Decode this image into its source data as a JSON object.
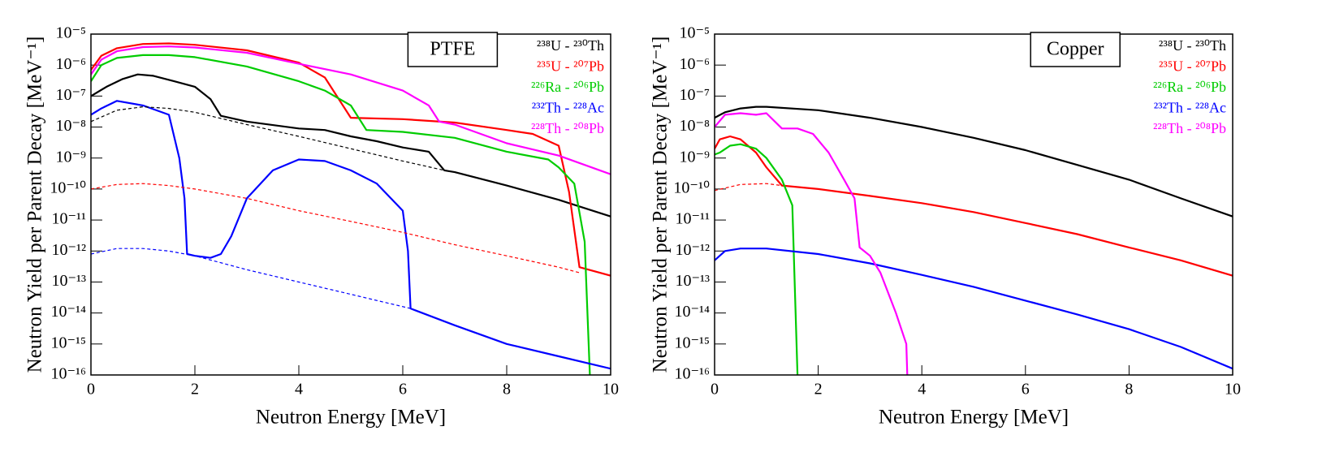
{
  "chart_data": [
    {
      "type": "line",
      "title": "PTFE",
      "xlabel": "Neutron Energy [MeV]",
      "ylabel": "Neutron Yield per Parent Decay [MeV⁻¹]",
      "log_y": true,
      "grid": false,
      "legend": "top-right",
      "xlim": [
        0,
        10
      ],
      "xticks": [
        0,
        2,
        4,
        6,
        8,
        10
      ],
      "ylim": [
        1e-16,
        1e-05
      ],
      "yticks": [
        {
          "value": 1e-16,
          "label": "10⁻¹⁶"
        },
        {
          "value": 1e-15,
          "label": "10⁻¹⁵"
        },
        {
          "value": 1e-14,
          "label": "10⁻¹⁴"
        },
        {
          "value": 1e-13,
          "label": "10⁻¹³"
        },
        {
          "value": 1e-12,
          "label": "10⁻¹²"
        },
        {
          "value": 1e-11,
          "label": "10⁻¹¹"
        },
        {
          "value": 1e-10,
          "label": "10⁻¹⁰"
        },
        {
          "value": 1e-09,
          "label": "10⁻⁹"
        },
        {
          "value": 1e-08,
          "label": "10⁻⁸"
        },
        {
          "value": 1e-07,
          "label": "10⁻⁷"
        },
        {
          "value": 1e-06,
          "label": "10⁻⁶"
        },
        {
          "value": 1e-05,
          "label": "10⁻⁵"
        }
      ],
      "series": [
        {
          "name": "²³⁸U - ²³⁰Th",
          "color": "#000000",
          "x": [
            0,
            0.3,
            0.6,
            0.9,
            1.2,
            1.6,
            2,
            2.3,
            2.5,
            3,
            4,
            4.5,
            5,
            5.5,
            6,
            6.5,
            6.8,
            7,
            8,
            9,
            10
          ],
          "values": [
            1e-07,
            2e-07,
            3.5e-07,
            5e-07,
            4.5e-07,
            3e-07,
            2e-07,
            8e-08,
            2.3e-08,
            1.5e-08,
            9e-09,
            8e-09,
            5e-09,
            3.5e-09,
            2.2e-09,
            1.6e-09,
            4e-10,
            3.5e-10,
            1.3e-10,
            4.5e-11,
            1.3e-11
          ]
        },
        {
          "name": "²³⁵U - ²⁰⁷Pb",
          "color": "#ff0000",
          "x": [
            0,
            0.2,
            0.5,
            1,
            1.5,
            2,
            3,
            4,
            4.5,
            5,
            6,
            7,
            8,
            8.5,
            9,
            9.2,
            9.4,
            10
          ],
          "values": [
            7e-07,
            2e-06,
            3.5e-06,
            4.8e-06,
            5e-06,
            4.5e-06,
            3e-06,
            1.2e-06,
            4e-07,
            2e-08,
            1.8e-08,
            1.4e-08,
            8e-09,
            6e-09,
            2.5e-09,
            8e-11,
            3e-13,
            1.6e-13
          ]
        },
        {
          "name": "²²⁶Ra - ²⁰⁶Pb",
          "color": "#00cc00",
          "x": [
            0,
            0.2,
            0.5,
            1,
            1.5,
            2,
            3,
            4,
            4.5,
            5,
            5.3,
            6,
            7,
            8,
            8.8,
            9,
            9.3,
            9.5,
            9.6
          ],
          "values": [
            3e-07,
            1e-06,
            1.7e-06,
            2.1e-06,
            2.1e-06,
            1.8e-06,
            9e-07,
            3e-07,
            1.5e-07,
            5e-08,
            8e-09,
            7e-09,
            4.5e-09,
            1.6e-09,
            9e-10,
            5e-10,
            1.5e-10,
            2e-12,
            1e-16
          ]
        },
        {
          "name": "²³²Th - ²²⁸Ac",
          "color": "#0000ff",
          "x": [
            0,
            0.2,
            0.5,
            1,
            1.5,
            1.7,
            1.8,
            1.85,
            2,
            2.3,
            2.5,
            2.7,
            3,
            3.5,
            4,
            4.5,
            5,
            5.5,
            6,
            6.1,
            6.15,
            7,
            8,
            9,
            10
          ],
          "values": [
            2.5e-08,
            4e-08,
            7e-08,
            5e-08,
            2.5e-08,
            1e-09,
            5e-11,
            8e-13,
            7e-13,
            6e-13,
            8e-13,
            3e-12,
            5e-11,
            4e-10,
            9e-10,
            8e-10,
            4e-10,
            1.5e-10,
            2e-11,
            1e-12,
            1.4e-14,
            4e-15,
            1e-15,
            4e-16,
            1.6e-16
          ]
        },
        {
          "name": "²²⁸Th - ²⁰⁸Pb",
          "color": "#ff00ff",
          "x": [
            0,
            0.2,
            0.5,
            1,
            1.5,
            2,
            3,
            4,
            5,
            6,
            6.5,
            6.7,
            7,
            8,
            9,
            10
          ],
          "values": [
            5e-07,
            1.5e-06,
            2.8e-06,
            3.8e-06,
            4e-06,
            3.7e-06,
            2.5e-06,
            1.1e-06,
            5e-07,
            1.5e-07,
            5e-08,
            1.5e-08,
            1.2e-08,
            3e-09,
            1.2e-09,
            3e-10
          ]
        },
        {
          "color": "#000000",
          "dashed": true,
          "x": [
            0,
            0.5,
            1,
            1.5,
            2,
            3,
            4,
            5,
            6,
            6.8
          ],
          "values": [
            1.5e-08,
            3.5e-08,
            4.5e-08,
            4e-08,
            3e-08,
            1.2e-08,
            5e-09,
            2e-09,
            8e-10,
            4e-10
          ]
        },
        {
          "color": "#ff0000",
          "dashed": true,
          "x": [
            0,
            0.5,
            1,
            1.5,
            2,
            3,
            4,
            5,
            6,
            7,
            8,
            9,
            9.4
          ],
          "values": [
            1e-10,
            1.4e-10,
            1.5e-10,
            1.3e-10,
            1e-10,
            5e-11,
            2e-11,
            9e-12,
            4e-12,
            1.6e-12,
            7e-13,
            3e-13,
            2e-13
          ]
        },
        {
          "color": "#0000ff",
          "dashed": true,
          "x": [
            0,
            0.5,
            1,
            1.5,
            2,
            3,
            4,
            5,
            6,
            6.15
          ],
          "values": [
            8e-13,
            1.2e-12,
            1.2e-12,
            1e-12,
            7e-13,
            2.5e-13,
            1e-13,
            4e-14,
            1.6e-14,
            1.4e-14
          ]
        }
      ]
    },
    {
      "type": "line",
      "title": "Copper",
      "xlabel": "Neutron Energy [MeV]",
      "ylabel": "Neutron Yield per Parent Decay [MeV⁻¹]",
      "log_y": true,
      "grid": false,
      "legend": "top-right",
      "xlim": [
        0,
        10
      ],
      "xticks": [
        0,
        2,
        4,
        6,
        8,
        10
      ],
      "ylim": [
        1e-16,
        1e-05
      ],
      "yticks": [
        {
          "value": 1e-16,
          "label": "10⁻¹⁶"
        },
        {
          "value": 1e-15,
          "label": "10⁻¹⁵"
        },
        {
          "value": 1e-14,
          "label": "10⁻¹⁴"
        },
        {
          "value": 1e-13,
          "label": "10⁻¹³"
        },
        {
          "value": 1e-12,
          "label": "10⁻¹²"
        },
        {
          "value": 1e-11,
          "label": "10⁻¹¹"
        },
        {
          "value": 1e-10,
          "label": "10⁻¹⁰"
        },
        {
          "value": 1e-09,
          "label": "10⁻⁹"
        },
        {
          "value": 1e-08,
          "label": "10⁻⁸"
        },
        {
          "value": 1e-07,
          "label": "10⁻⁷"
        },
        {
          "value": 1e-06,
          "label": "10⁻⁶"
        },
        {
          "value": 1e-05,
          "label": "10⁻⁵"
        }
      ],
      "series": [
        {
          "name": "²³⁸U - ²³⁰Th",
          "color": "#000000",
          "x": [
            0,
            0.2,
            0.5,
            0.8,
            1,
            2,
            3,
            4,
            5,
            6,
            7,
            8,
            9,
            10
          ],
          "values": [
            2e-08,
            3e-08,
            4e-08,
            4.5e-08,
            4.5e-08,
            3.5e-08,
            2e-08,
            1e-08,
            4.5e-09,
            1.8e-09,
            6e-10,
            2e-10,
            5e-11,
            1.3e-11
          ]
        },
        {
          "name": "²³⁵U - ²⁰⁷Pb",
          "color": "#ff0000",
          "x": [
            0,
            0.1,
            0.3,
            0.5,
            0.8,
            1,
            1.3,
            2,
            3,
            4,
            5,
            6,
            7,
            8,
            9,
            10
          ],
          "values": [
            2e-09,
            4e-09,
            5e-09,
            4e-09,
            1.5e-09,
            5e-10,
            1.3e-10,
            1e-10,
            6e-11,
            3.5e-11,
            1.8e-11,
            8e-12,
            3.5e-12,
            1.3e-12,
            5e-13,
            1.6e-13
          ]
        },
        {
          "name": "²²⁶Ra - ²⁰⁶Pb",
          "color": "#00cc00",
          "x": [
            0,
            0.1,
            0.3,
            0.5,
            0.8,
            1,
            1.3,
            1.5,
            1.6
          ],
          "values": [
            1.3e-09,
            1.5e-09,
            2.5e-09,
            2.8e-09,
            2e-09,
            1e-09,
            2e-10,
            3e-11,
            1e-16
          ]
        },
        {
          "name": "²³²Th - ²²⁸Ac",
          "color": "#0000ff",
          "x": [
            0,
            0.2,
            0.5,
            0.8,
            1,
            2,
            3,
            4,
            5,
            6,
            7,
            8,
            9,
            10
          ],
          "values": [
            5e-13,
            1e-12,
            1.2e-12,
            1.2e-12,
            1.2e-12,
            8e-13,
            4e-13,
            1.7e-13,
            7e-14,
            2.5e-14,
            9e-15,
            3e-15,
            8e-16,
            1.6e-16
          ]
        },
        {
          "name": "²²⁸Th - ²⁰⁸Pb",
          "color": "#ff00ff",
          "x": [
            0,
            0.2,
            0.5,
            0.8,
            1,
            1.3,
            1.6,
            1.9,
            2.2,
            2.5,
            2.7,
            2.8,
            3,
            3.2,
            3.5,
            3.7,
            3.72
          ],
          "values": [
            1e-08,
            2.5e-08,
            2.8e-08,
            2.5e-08,
            2.8e-08,
            9e-09,
            9e-09,
            6e-09,
            1.5e-09,
            2e-10,
            5e-11,
            1.3e-12,
            7e-13,
            2e-13,
            1e-14,
            1e-15,
            1e-16
          ]
        },
        {
          "color": "#ff0000",
          "dashed": true,
          "x": [
            0,
            0.5,
            1,
            1.3
          ],
          "values": [
            9e-11,
            1.4e-10,
            1.5e-10,
            1.3e-10
          ]
        }
      ]
    }
  ]
}
